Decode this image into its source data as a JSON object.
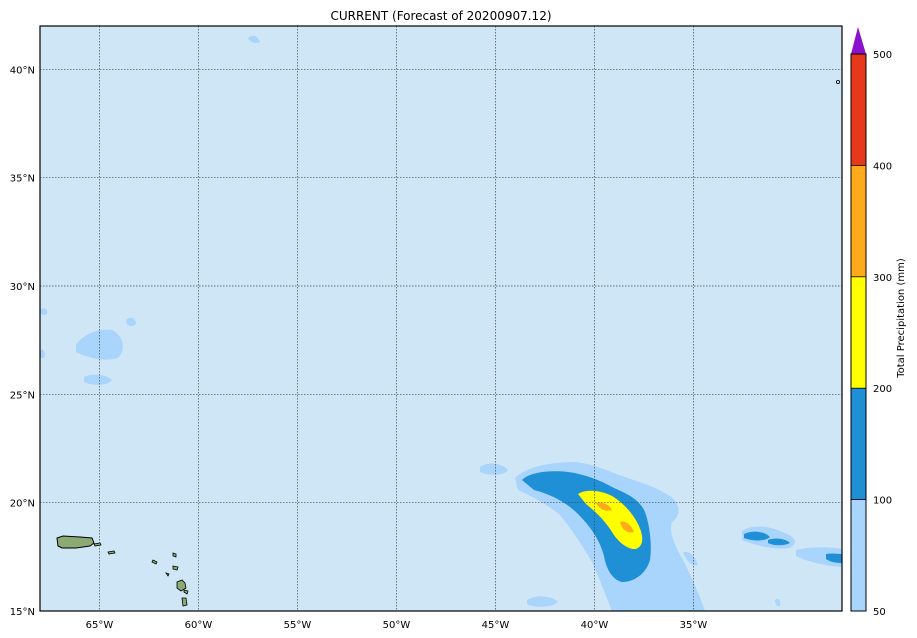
{
  "title": "CURRENT (Forecast of 20200907.12)",
  "colors": {
    "ocean": "#cfe6f7",
    "band_50_100": "#a9d4fb",
    "band_100_200": "#1f8fd6",
    "band_200_300": "#ffff00",
    "band_300_400": "#ffaa1a",
    "band_400_500": "#e8381c",
    "band_over_500": "#8a12cc",
    "grid": "#444444"
  },
  "map": {
    "lon_range": [
      -68,
      -27.5
    ],
    "lat_range": [
      15,
      42
    ],
    "lon_ticks": [
      {
        "value": -65,
        "label": "65°W"
      },
      {
        "value": -60,
        "label": "60°W"
      },
      {
        "value": -55,
        "label": "55°W"
      },
      {
        "value": -50,
        "label": "50°W"
      },
      {
        "value": -45,
        "label": "45°W"
      },
      {
        "value": -40,
        "label": "40°W"
      },
      {
        "value": -35,
        "label": "35°W"
      }
    ],
    "lat_ticks": [
      {
        "value": 15,
        "label": "15°N"
      },
      {
        "value": 20,
        "label": "20°N"
      },
      {
        "value": 25,
        "label": "25°N"
      },
      {
        "value": 30,
        "label": "30°N"
      },
      {
        "value": 35,
        "label": "35°N"
      },
      {
        "value": 40,
        "label": "40°N"
      }
    ]
  },
  "colorbar": {
    "label": "Total Precipitation (mm)",
    "ticks": [
      {
        "value": 50,
        "label": "50"
      },
      {
        "value": 100,
        "label": "100"
      },
      {
        "value": 200,
        "label": "200"
      },
      {
        "value": 300,
        "label": "300"
      },
      {
        "value": 400,
        "label": "400"
      },
      {
        "value": 500,
        "label": "500"
      }
    ]
  }
}
